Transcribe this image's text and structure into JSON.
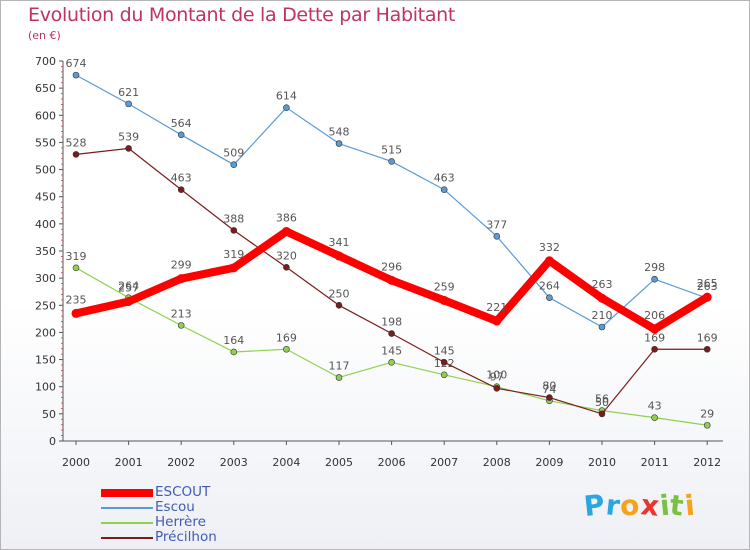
{
  "title": "Evolution du Montant de la Dette par Habitant",
  "subtitle": "(en €)",
  "chart_data": {
    "type": "line",
    "title": "Evolution du Montant de la Dette par Habitant",
    "subtitle": "(en €)",
    "xlabel": "",
    "ylabel": "",
    "x": [
      "2000",
      "2001",
      "2002",
      "2003",
      "2004",
      "2005",
      "2006",
      "2007",
      "2008",
      "2009",
      "2010",
      "2011",
      "2012"
    ],
    "ylim": [
      0,
      700
    ],
    "yticks": [
      0,
      50,
      100,
      150,
      200,
      250,
      300,
      350,
      400,
      450,
      500,
      550,
      600,
      650,
      700
    ],
    "grid": "none",
    "legend_position": "bottom-left",
    "series": [
      {
        "name": "Escou",
        "color": "#5b9bd5",
        "values": [
          674,
          621,
          564,
          509,
          614,
          548,
          515,
          463,
          377,
          264,
          210,
          298,
          263
        ]
      },
      {
        "name": "Herrère",
        "color": "#8fd14f",
        "values": [
          319,
          264,
          213,
          164,
          169,
          117,
          145,
          122,
          100,
          74,
          56,
          43,
          29
        ]
      },
      {
        "name": "Précilhon",
        "color": "#7b1c1c",
        "values": [
          528,
          539,
          463,
          388,
          320,
          250,
          198,
          145,
          97,
          80,
          50,
          169,
          169
        ]
      },
      {
        "name": "ESCOUT",
        "color": "#ff0000",
        "values": [
          235,
          257,
          299,
          319,
          386,
          341,
          296,
          259,
          221,
          332,
          263,
          206,
          265
        ]
      }
    ]
  },
  "logo": {
    "letters": [
      "P",
      "r",
      "o",
      "x",
      "i",
      "t",
      "i"
    ],
    "colors": [
      "#2aa7df",
      "#2aa7df",
      "#f7a21b",
      "#e8362d",
      "#7ac143",
      "#7ac143",
      "#f7a21b"
    ]
  }
}
